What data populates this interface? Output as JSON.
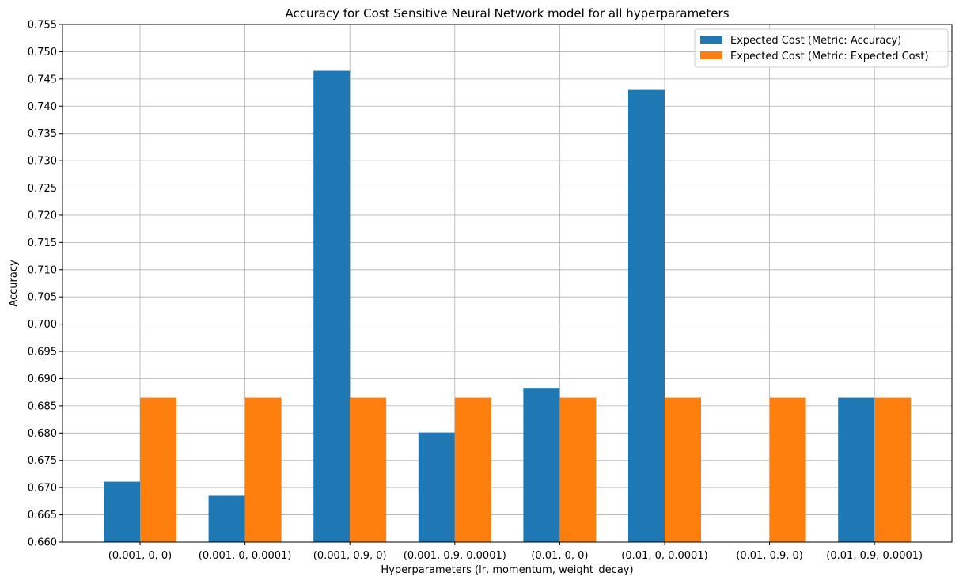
{
  "chart_data": {
    "type": "bar",
    "title": "Accuracy for Cost Sensitive Neural Network model for all hyperparameters",
    "xlabel": "Hyperparameters (lr, momentum, weight_decay)",
    "ylabel": "Accuracy",
    "categories": [
      "(0.001, 0, 0)",
      "(0.001, 0, 0.0001)",
      "(0.001, 0.9, 0)",
      "(0.001, 0.9, 0.0001)",
      "(0.01, 0, 0)",
      "(0.01, 0, 0.0001)",
      "(0.01, 0.9, 0)",
      "(0.01, 0.9, 0.0001)"
    ],
    "series": [
      {
        "name": "Expected Cost (Metric: Accuracy)",
        "color": "#1f77b4",
        "values": [
          0.6711,
          0.6685,
          0.7465,
          0.6801,
          0.6883,
          0.743,
          0.66,
          0.6865
        ]
      },
      {
        "name": "Expected Cost (Metric: Expected Cost)",
        "color": "#ff7f0e",
        "values": [
          0.6865,
          0.6865,
          0.6865,
          0.6865,
          0.6865,
          0.6865,
          0.6865,
          0.6865
        ]
      }
    ],
    "ylim": [
      0.66,
      0.755
    ],
    "yticks": [
      "0.660",
      "0.665",
      "0.670",
      "0.675",
      "0.680",
      "0.685",
      "0.690",
      "0.695",
      "0.700",
      "0.705",
      "0.710",
      "0.715",
      "0.720",
      "0.725",
      "0.730",
      "0.735",
      "0.740",
      "0.745",
      "0.750",
      "0.755"
    ],
    "grid": true,
    "legend_position": "top-right"
  }
}
